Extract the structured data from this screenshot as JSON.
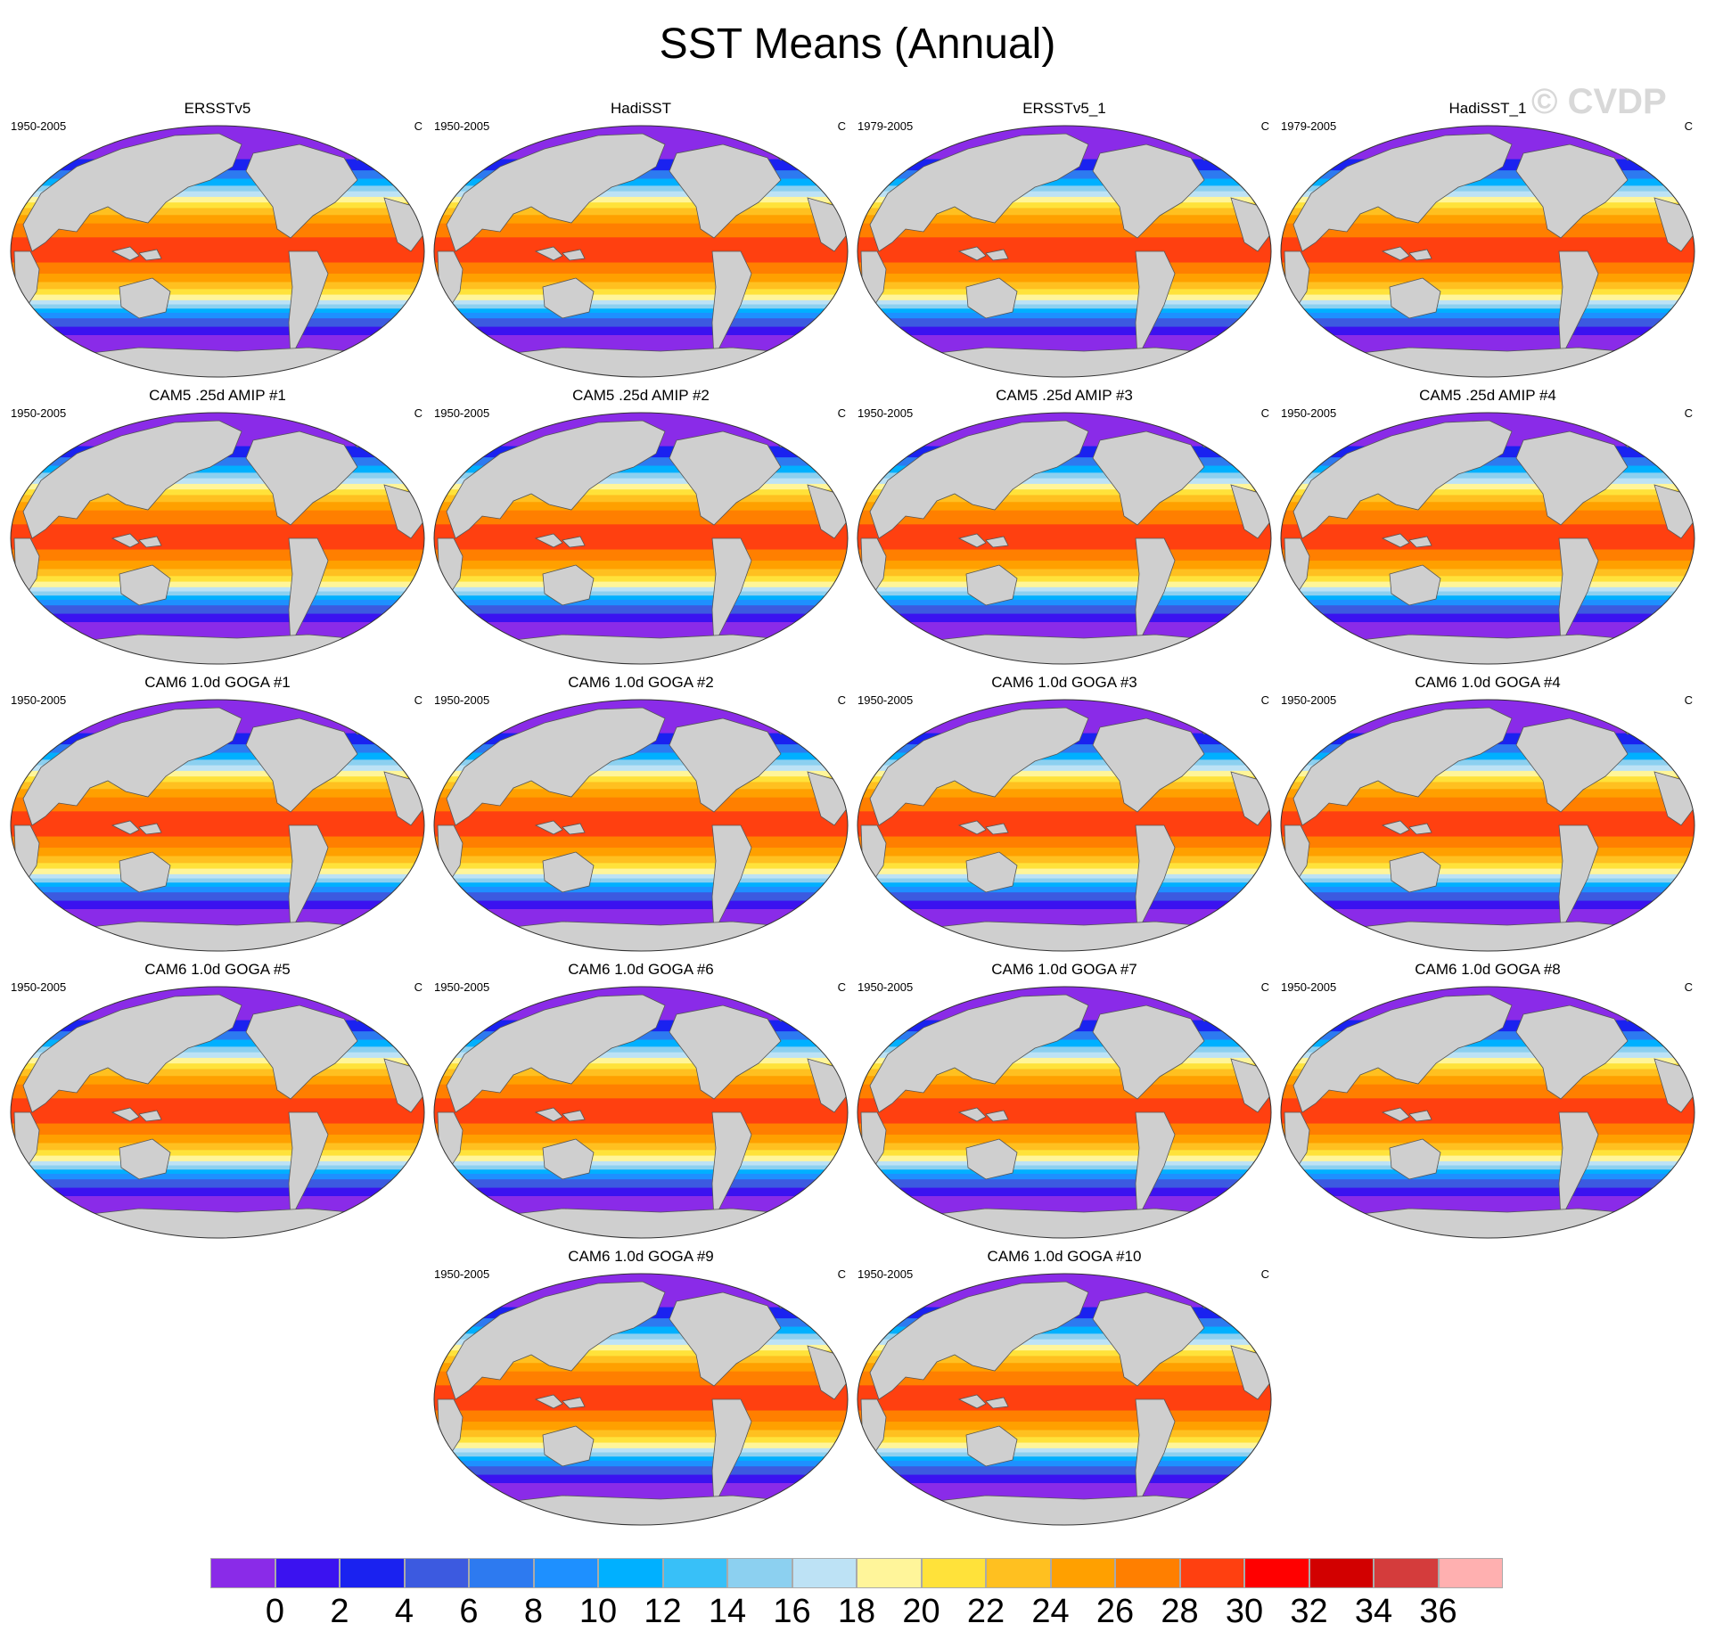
{
  "title": "SST Means (Annual)",
  "watermark": "© CVDP",
  "unit": "C",
  "panels": [
    {
      "title": "ERSSTv5",
      "period": "1950-2005"
    },
    {
      "title": "HadiSST",
      "period": "1950-2005"
    },
    {
      "title": "ERSSTv5_1",
      "period": "1979-2005"
    },
    {
      "title": "HadiSST_1",
      "period": "1979-2005"
    },
    {
      "title": "CAM5 .25d AMIP #1",
      "period": "1950-2005"
    },
    {
      "title": "CAM5 .25d AMIP #2",
      "period": "1950-2005"
    },
    {
      "title": "CAM5 .25d AMIP #3",
      "period": "1950-2005"
    },
    {
      "title": "CAM5 .25d AMIP #4",
      "period": "1950-2005"
    },
    {
      "title": "CAM6 1.0d GOGA #1",
      "period": "1950-2005"
    },
    {
      "title": "CAM6 1.0d GOGA #2",
      "period": "1950-2005"
    },
    {
      "title": "CAM6 1.0d GOGA #3",
      "period": "1950-2005"
    },
    {
      "title": "CAM6 1.0d GOGA #4",
      "period": "1950-2005"
    },
    {
      "title": "CAM6 1.0d GOGA #5",
      "period": "1950-2005"
    },
    {
      "title": "CAM6 1.0d GOGA #6",
      "period": "1950-2005"
    },
    {
      "title": "CAM6 1.0d GOGA #7",
      "period": "1950-2005"
    },
    {
      "title": "CAM6 1.0d GOGA #8",
      "period": "1950-2005"
    },
    {
      "title": "CAM6 1.0d GOGA #9",
      "period": "1950-2005"
    },
    {
      "title": "CAM6 1.0d GOGA #10",
      "period": "1950-2005"
    }
  ],
  "colorbar": {
    "labels": [
      "0",
      "2",
      "4",
      "6",
      "8",
      "10",
      "12",
      "14",
      "16",
      "18",
      "20",
      "22",
      "24",
      "26",
      "28",
      "30",
      "32",
      "34",
      "36"
    ],
    "colors": [
      "#8a2be8",
      "#3b12f0",
      "#1a22f0",
      "#3c5ae0",
      "#2d7af0",
      "#1e90ff",
      "#00b0ff",
      "#38c0f8",
      "#8cd0f0",
      "#bde2f5",
      "#fff59a",
      "#ffe23a",
      "#ffc020",
      "#ffa000",
      "#ff7f00",
      "#ff4010",
      "#ff0000",
      "#d20000",
      "#d43c3c",
      "#ffb0b0"
    ]
  }
}
